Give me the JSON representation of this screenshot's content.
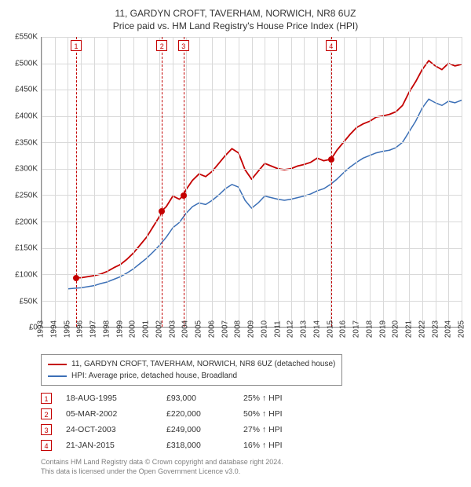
{
  "titles": {
    "line1": "11, GARDYN CROFT, TAVERHAM, NORWICH, NR8 6UZ",
    "line2": "Price paid vs. HM Land Registry's House Price Index (HPI)"
  },
  "chart": {
    "type": "line",
    "background_color": "#ffffff",
    "grid_color": "#d9d9d9",
    "axis_color": "#888888",
    "x_min_year": 1993,
    "x_max_year": 2025,
    "x_tick_years": [
      1993,
      1994,
      1995,
      1996,
      1997,
      1998,
      1999,
      2000,
      2001,
      2002,
      2003,
      2004,
      2005,
      2006,
      2007,
      2008,
      2009,
      2010,
      2011,
      2012,
      2013,
      2014,
      2015,
      2016,
      2017,
      2018,
      2019,
      2020,
      2021,
      2022,
      2023,
      2024,
      2025
    ],
    "y_min": 0,
    "y_max": 550000,
    "y_tick_step": 50000,
    "y_tick_labels": [
      "£0",
      "£50K",
      "£100K",
      "£150K",
      "£200K",
      "£250K",
      "£300K",
      "£350K",
      "£400K",
      "£450K",
      "£500K",
      "£550K"
    ],
    "tick_fontsize": 10,
    "series": [
      {
        "key": "subject",
        "label": "11, GARDYN CROFT, TAVERHAM, NORWICH, NR8 6UZ (detached house)",
        "color": "#c40000",
        "line_width": 1.8,
        "points": [
          [
            1995.63,
            93000
          ],
          [
            1996.0,
            93000
          ],
          [
            1996.5,
            95000
          ],
          [
            1997.0,
            97000
          ],
          [
            1997.5,
            100000
          ],
          [
            1998.0,
            105000
          ],
          [
            1998.5,
            112000
          ],
          [
            1999.0,
            118000
          ],
          [
            1999.5,
            128000
          ],
          [
            2000.0,
            140000
          ],
          [
            2000.5,
            155000
          ],
          [
            2001.0,
            170000
          ],
          [
            2001.5,
            190000
          ],
          [
            2002.0,
            210000
          ],
          [
            2002.17,
            220000
          ],
          [
            2002.5,
            228000
          ],
          [
            2003.0,
            248000
          ],
          [
            2003.5,
            242000
          ],
          [
            2003.81,
            249000
          ],
          [
            2004.0,
            260000
          ],
          [
            2004.5,
            278000
          ],
          [
            2005.0,
            290000
          ],
          [
            2005.5,
            285000
          ],
          [
            2006.0,
            295000
          ],
          [
            2006.5,
            310000
          ],
          [
            2007.0,
            325000
          ],
          [
            2007.5,
            338000
          ],
          [
            2008.0,
            330000
          ],
          [
            2008.5,
            298000
          ],
          [
            2009.0,
            280000
          ],
          [
            2009.5,
            295000
          ],
          [
            2010.0,
            310000
          ],
          [
            2010.5,
            305000
          ],
          [
            2011.0,
            300000
          ],
          [
            2011.5,
            298000
          ],
          [
            2012.0,
            300000
          ],
          [
            2012.5,
            305000
          ],
          [
            2013.0,
            308000
          ],
          [
            2013.5,
            312000
          ],
          [
            2014.0,
            320000
          ],
          [
            2014.5,
            315000
          ],
          [
            2015.06,
            318000
          ],
          [
            2015.5,
            335000
          ],
          [
            2016.0,
            350000
          ],
          [
            2016.5,
            365000
          ],
          [
            2017.0,
            378000
          ],
          [
            2017.5,
            385000
          ],
          [
            2018.0,
            390000
          ],
          [
            2018.5,
            398000
          ],
          [
            2019.0,
            400000
          ],
          [
            2019.5,
            403000
          ],
          [
            2020.0,
            408000
          ],
          [
            2020.5,
            420000
          ],
          [
            2021.0,
            445000
          ],
          [
            2021.5,
            465000
          ],
          [
            2022.0,
            488000
          ],
          [
            2022.5,
            505000
          ],
          [
            2023.0,
            495000
          ],
          [
            2023.5,
            488000
          ],
          [
            2024.0,
            500000
          ],
          [
            2024.5,
            495000
          ],
          [
            2025.0,
            498000
          ]
        ]
      },
      {
        "key": "hpi",
        "label": "HPI: Average price, detached house, Broadland",
        "color": "#3b6fb6",
        "line_width": 1.5,
        "points": [
          [
            1995.0,
            72000
          ],
          [
            1995.5,
            73000
          ],
          [
            1996.0,
            74000
          ],
          [
            1996.5,
            76000
          ],
          [
            1997.0,
            78000
          ],
          [
            1997.5,
            82000
          ],
          [
            1998.0,
            85000
          ],
          [
            1998.5,
            90000
          ],
          [
            1999.0,
            95000
          ],
          [
            1999.5,
            102000
          ],
          [
            2000.0,
            110000
          ],
          [
            2000.5,
            120000
          ],
          [
            2001.0,
            130000
          ],
          [
            2001.5,
            142000
          ],
          [
            2002.0,
            155000
          ],
          [
            2002.5,
            170000
          ],
          [
            2003.0,
            188000
          ],
          [
            2003.5,
            198000
          ],
          [
            2004.0,
            215000
          ],
          [
            2004.5,
            228000
          ],
          [
            2005.0,
            235000
          ],
          [
            2005.5,
            232000
          ],
          [
            2006.0,
            240000
          ],
          [
            2006.5,
            250000
          ],
          [
            2007.0,
            262000
          ],
          [
            2007.5,
            270000
          ],
          [
            2008.0,
            265000
          ],
          [
            2008.5,
            240000
          ],
          [
            2009.0,
            225000
          ],
          [
            2009.5,
            235000
          ],
          [
            2010.0,
            248000
          ],
          [
            2010.5,
            245000
          ],
          [
            2011.0,
            242000
          ],
          [
            2011.5,
            240000
          ],
          [
            2012.0,
            242000
          ],
          [
            2012.5,
            245000
          ],
          [
            2013.0,
            248000
          ],
          [
            2013.5,
            252000
          ],
          [
            2014.0,
            258000
          ],
          [
            2014.5,
            262000
          ],
          [
            2015.0,
            270000
          ],
          [
            2015.5,
            280000
          ],
          [
            2016.0,
            292000
          ],
          [
            2016.5,
            303000
          ],
          [
            2017.0,
            312000
          ],
          [
            2017.5,
            320000
          ],
          [
            2018.0,
            325000
          ],
          [
            2018.5,
            330000
          ],
          [
            2019.0,
            333000
          ],
          [
            2019.5,
            335000
          ],
          [
            2020.0,
            340000
          ],
          [
            2020.5,
            350000
          ],
          [
            2021.0,
            370000
          ],
          [
            2021.5,
            390000
          ],
          [
            2022.0,
            415000
          ],
          [
            2022.5,
            432000
          ],
          [
            2023.0,
            425000
          ],
          [
            2023.5,
            420000
          ],
          [
            2024.0,
            428000
          ],
          [
            2024.5,
            425000
          ],
          [
            2025.0,
            430000
          ]
        ]
      }
    ],
    "sale_markers": [
      {
        "n": "1",
        "year": 1995.63,
        "price": 93000,
        "color": "#c40000"
      },
      {
        "n": "2",
        "year": 2002.17,
        "price": 220000,
        "color": "#c40000"
      },
      {
        "n": "3",
        "year": 2003.81,
        "price": 249000,
        "color": "#c40000"
      },
      {
        "n": "4",
        "year": 2015.06,
        "price": 318000,
        "color": "#c40000"
      }
    ]
  },
  "legend": {
    "border_color": "#888888",
    "items": [
      {
        "color": "#c40000",
        "label_key": "chart.series.0.label"
      },
      {
        "color": "#3b6fb6",
        "label_key": "chart.series.1.label"
      }
    ]
  },
  "sales_table": {
    "rows": [
      {
        "n": "1",
        "date": "18-AUG-1995",
        "price": "£93,000",
        "pct": "25% ↑ HPI"
      },
      {
        "n": "2",
        "date": "05-MAR-2002",
        "price": "£220,000",
        "pct": "50% ↑ HPI"
      },
      {
        "n": "3",
        "date": "24-OCT-2003",
        "price": "£249,000",
        "pct": "27% ↑ HPI"
      },
      {
        "n": "4",
        "date": "21-JAN-2015",
        "price": "£318,000",
        "pct": "16% ↑ HPI"
      }
    ]
  },
  "footer": {
    "line1": "Contains HM Land Registry data © Crown copyright and database right 2024.",
    "line2": "This data is licensed under the Open Government Licence v3.0."
  }
}
